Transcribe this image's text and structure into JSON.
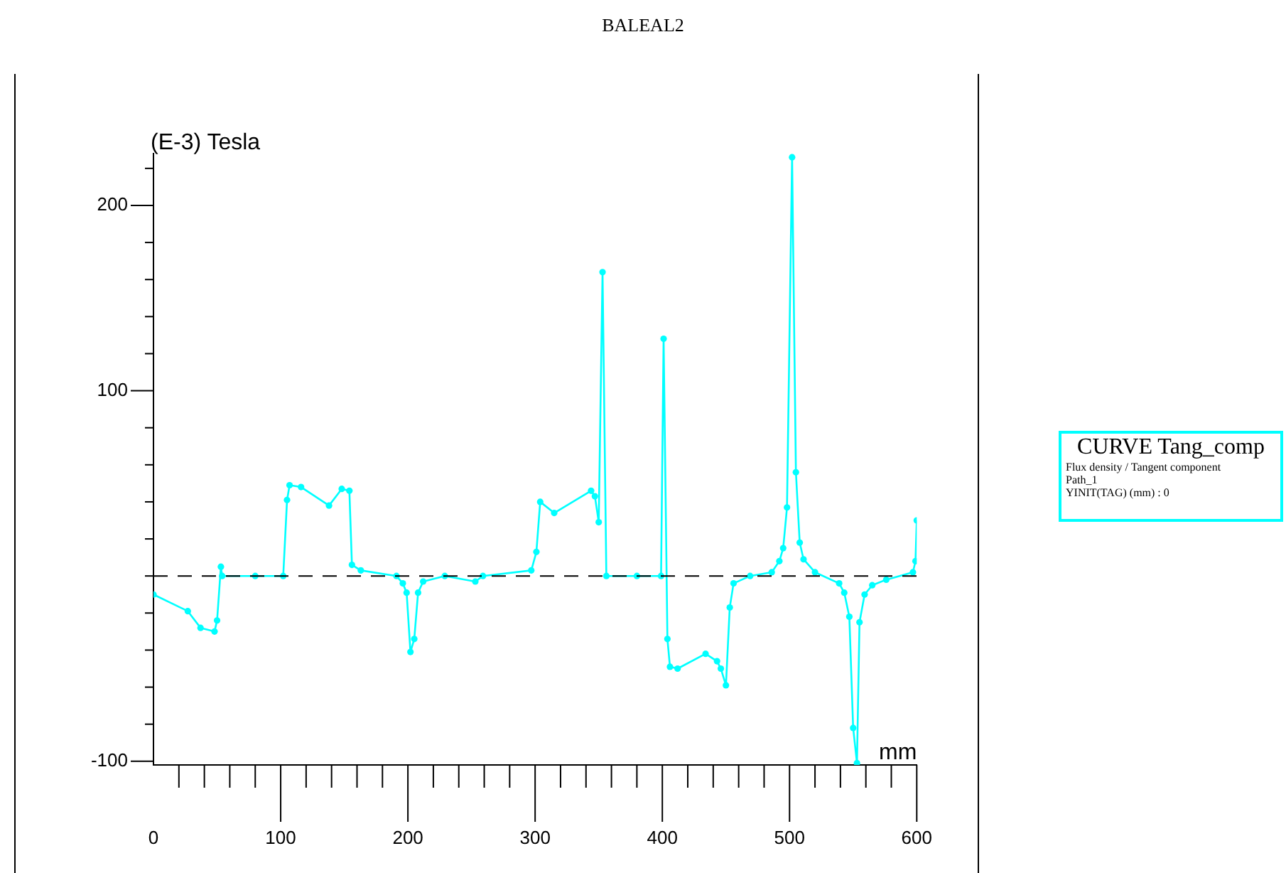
{
  "chart_data": {
    "type": "line",
    "title": "BALEAL2",
    "ylabel": "(E-3) Tesla",
    "xlabel": "mm",
    "legend": "right",
    "marker": "circle",
    "line_style": "solid",
    "annotations": [
      "Flux density / Tangent component",
      "Path_1",
      "YINIT(TAG) (mm) : 0"
    ],
    "xlim": [
      0,
      600
    ],
    "ylim": [
      -102,
      228
    ],
    "xticks": [
      0,
      {
        "value": 20,
        "label": null
      },
      {
        "value": 40,
        "label": null
      },
      {
        "value": 60,
        "label": null
      },
      {
        "value": 80,
        "label": null
      },
      100,
      {
        "value": 120,
        "label": null
      },
      {
        "value": 140,
        "label": null
      },
      {
        "value": 160,
        "label": null
      },
      {
        "value": 180,
        "label": null
      },
      200,
      {
        "value": 220,
        "label": null
      },
      {
        "value": 240,
        "label": null
      },
      {
        "value": 260,
        "label": null
      },
      {
        "value": 280,
        "label": null
      },
      300,
      {
        "value": 320,
        "label": null
      },
      {
        "value": 340,
        "label": null
      },
      {
        "value": 360,
        "label": null
      },
      {
        "value": 380,
        "label": null
      },
      400,
      {
        "value": 420,
        "label": null
      },
      {
        "value": 440,
        "label": null
      },
      {
        "value": 460,
        "label": null
      },
      {
        "value": 480,
        "label": null
      },
      500,
      {
        "value": 520,
        "label": null
      },
      {
        "value": 540,
        "label": null
      },
      {
        "value": 560,
        "label": null
      },
      {
        "value": 580,
        "label": null
      },
      600
    ],
    "yticks": [
      -100,
      {
        "value": -80,
        "label": null
      },
      {
        "value": -60,
        "label": null
      },
      {
        "value": -40,
        "label": null
      },
      {
        "value": -20,
        "label": null
      },
      {
        "value": 0,
        "label": null
      },
      {
        "value": 20,
        "label": null
      },
      {
        "value": 40,
        "label": null
      },
      {
        "value": 60,
        "label": null
      },
      {
        "value": 80,
        "label": null
      },
      100,
      {
        "value": 120,
        "label": null
      },
      {
        "value": 140,
        "label": null
      },
      {
        "value": 160,
        "label": null
      },
      {
        "value": 180,
        "label": null
      },
      200,
      {
        "value": 220,
        "label": null
      }
    ],
    "ref_lines": [
      {
        "axis": "y",
        "value": 0,
        "color": "#000000",
        "line_style": "dashed"
      }
    ],
    "series": [
      {
        "name": "CURVE Tang_comp",
        "color": "#00ffff",
        "x": [
          0,
          27,
          37,
          48,
          50,
          53,
          54,
          80,
          102,
          105,
          107,
          116,
          138,
          148,
          154,
          156,
          163,
          191,
          196,
          199,
          202,
          205,
          208,
          212,
          229,
          253,
          259,
          297,
          301,
          304,
          315,
          344,
          347,
          350,
          353,
          356,
          380,
          399,
          401,
          404,
          406,
          412,
          434,
          443,
          446,
          450,
          453,
          456,
          469,
          486,
          492,
          495,
          498,
          502,
          505,
          508,
          511,
          520,
          539,
          543,
          547,
          550,
          553,
          555,
          559,
          565,
          576,
          597,
          599,
          600
        ],
        "values": [
          -10,
          -19,
          -28,
          -30,
          -24,
          5,
          0,
          0,
          0,
          41,
          49,
          48,
          38,
          47,
          46,
          6,
          3,
          0,
          -4,
          -9,
          -41,
          -34,
          -9,
          -3,
          0,
          -3,
          0,
          3,
          13,
          40,
          34,
          46,
          43,
          29,
          164,
          0,
          0,
          0,
          128,
          -34,
          -49,
          -50,
          -42,
          -46,
          -50,
          -59,
          -17,
          -4,
          0,
          2,
          8,
          15,
          37,
          226,
          56,
          18,
          9,
          2,
          -4,
          -9,
          -22,
          -82,
          -101,
          -25,
          -10,
          -5,
          -2,
          2,
          8,
          30
        ]
      }
    ]
  }
}
